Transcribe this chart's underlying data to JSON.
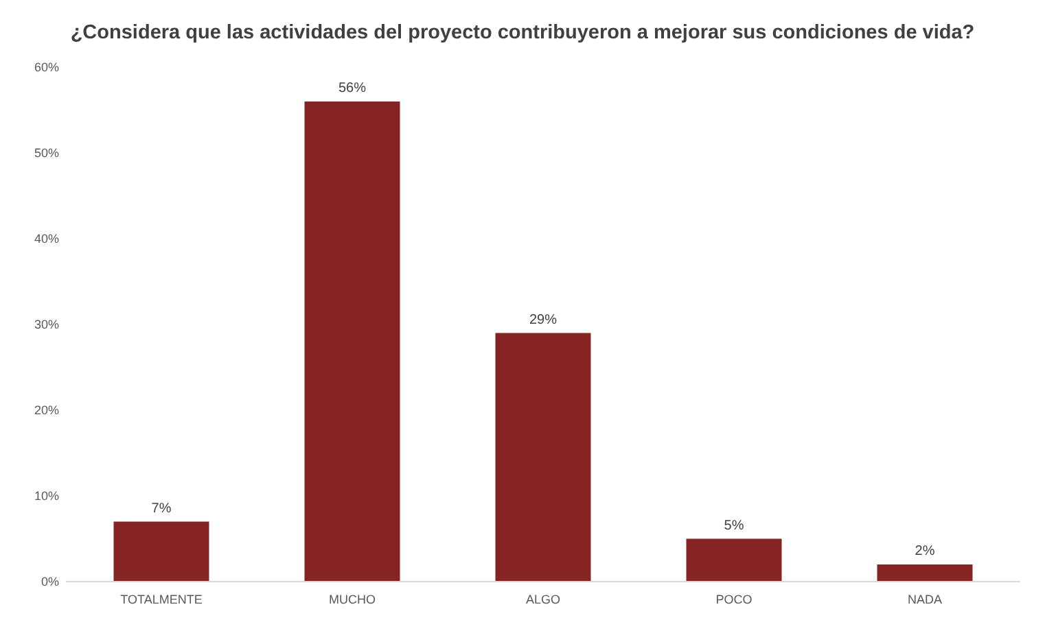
{
  "chart_data": {
    "type": "bar",
    "title": "¿Considera que las actividades del proyecto contribuyeron a mejorar sus condiciones de vida?",
    "categories": [
      "TOTALMENTE",
      "MUCHO",
      "ALGO",
      "POCO",
      "NADA"
    ],
    "values": [
      7,
      56,
      29,
      5,
      2
    ],
    "value_labels": [
      "7%",
      "56%",
      "29%",
      "5%",
      "2%"
    ],
    "color": "#862424",
    "ylim": [
      0,
      60
    ],
    "yticks": [
      {
        "value": 0,
        "label": "0%"
      },
      {
        "value": 10,
        "label": "10%"
      },
      {
        "value": 20,
        "label": "20%"
      },
      {
        "value": 30,
        "label": "30%"
      },
      {
        "value": 40,
        "label": "40%"
      },
      {
        "value": 50,
        "label": "50%"
      },
      {
        "value": 60,
        "label": "60%"
      }
    ],
    "grid": false
  }
}
